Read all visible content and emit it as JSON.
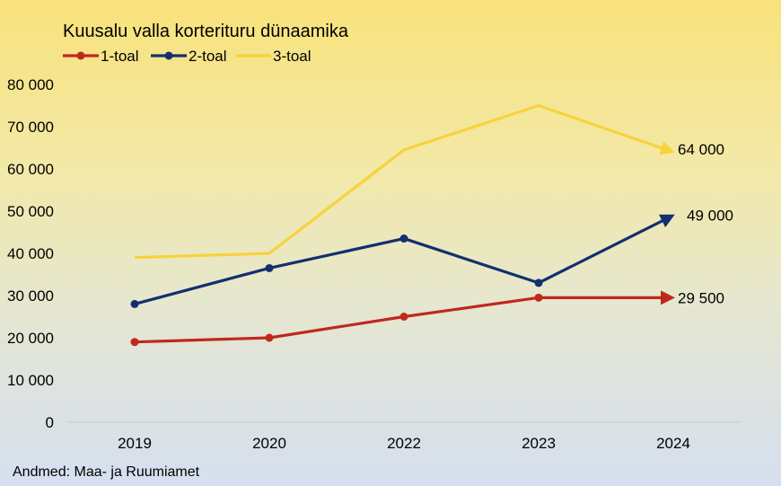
{
  "chart_data": {
    "type": "line",
    "title": "Kuusalu valla korterituru dünaamika",
    "source": "Andmed: Maa- ja Ruumiamet",
    "categories": [
      "2019",
      "2020",
      "2022",
      "2023",
      "2024"
    ],
    "ylim": [
      0,
      80000
    ],
    "yticks": [
      0,
      10000,
      20000,
      30000,
      40000,
      50000,
      60000,
      70000,
      80000
    ],
    "ytick_labels": [
      "0",
      "10 000",
      "20 000",
      "30 000",
      "40 000",
      "50 000",
      "60 000",
      "70 000",
      "80 000"
    ],
    "grid": false,
    "legend_position": "top-left",
    "series": [
      {
        "name": "1-toal",
        "color": "#c0281c",
        "markers": true,
        "values": [
          19000,
          20000,
          25000,
          29500,
          29500
        ],
        "end_label": "29 500"
      },
      {
        "name": "2-toal",
        "color": "#132f6e",
        "markers": true,
        "values": [
          28000,
          36500,
          43500,
          33000,
          49000
        ],
        "end_label": "49 000"
      },
      {
        "name": "3-toal",
        "color": "#f6d33c",
        "markers": false,
        "values": [
          39000,
          40000,
          64500,
          75000,
          64000
        ],
        "end_label": "64 000"
      }
    ]
  }
}
